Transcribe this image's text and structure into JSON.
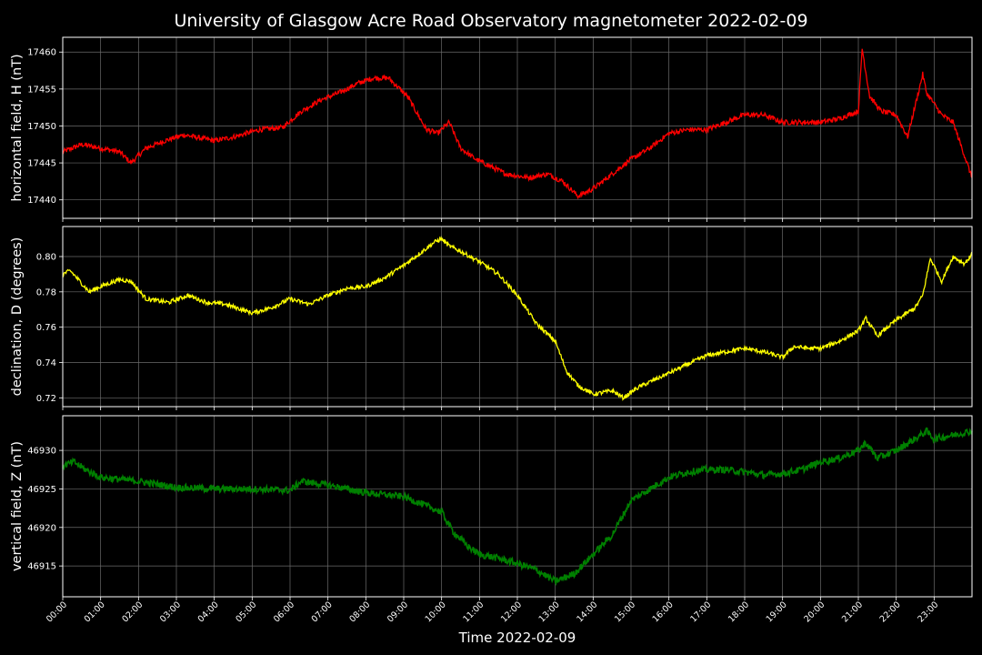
{
  "title": "University of Glasgow Acre Road Observatory magnetometer 2022-02-09",
  "xlabel": "Time 2022-02-09",
  "colors": {
    "background": "#000000",
    "grid": "#6b6b6b",
    "axis": "#ffffff"
  },
  "chart_data": [
    {
      "type": "line",
      "ylabel": "horizontal field, H (nT)",
      "color": "#ff0000",
      "ylim": [
        17437.5,
        17462.0
      ],
      "yticks": [
        17440,
        17445,
        17450,
        17455,
        17460
      ],
      "grid": true,
      "x_unit": "hours",
      "x": [
        0,
        0.5,
        1,
        1.5,
        1.8,
        2.2,
        2.7,
        3.2,
        4,
        4.5,
        5.2,
        5.8,
        6.3,
        6.8,
        7.3,
        7.8,
        8.2,
        8.6,
        9.1,
        9.6,
        9.9,
        10.2,
        10.5,
        10.9,
        11.3,
        11.7,
        12.3,
        12.8,
        13.2,
        13.6,
        14,
        14.5,
        15,
        15.5,
        16,
        16.5,
        17,
        17.5,
        18,
        18.5,
        19,
        19.5,
        20,
        20.5,
        21,
        21.1,
        21.3,
        21.6,
        22,
        22.3,
        22.7,
        22.8,
        23.2,
        23.5,
        23.8,
        24
      ],
      "y": [
        17446.5,
        17447.5,
        17447,
        17446.5,
        17445,
        17447,
        17448,
        17448.8,
        17448,
        17448.5,
        17449.5,
        17449.8,
        17452,
        17453.5,
        17454.5,
        17455.8,
        17456.5,
        17456.5,
        17454,
        17449.5,
        17449,
        17450.5,
        17447,
        17445.5,
        17444.5,
        17443.5,
        17443,
        17443.5,
        17442.5,
        17440.5,
        17441.5,
        17443.5,
        17445.5,
        17447,
        17449,
        17449.5,
        17449.5,
        17450.5,
        17451.5,
        17451.5,
        17450.5,
        17450.5,
        17450.5,
        17451,
        17452,
        17460.5,
        17454,
        17452,
        17451.5,
        17448.5,
        17457,
        17454.5,
        17451.5,
        17450.5,
        17446,
        17443
      ]
    },
    {
      "type": "line",
      "ylabel": "declination, D (degrees)",
      "color": "#ffff00",
      "ylim": [
        0.715,
        0.817
      ],
      "yticks": [
        0.72,
        0.74,
        0.76,
        0.78,
        0.8
      ],
      "grid": true,
      "x_unit": "hours",
      "x": [
        0,
        0.2,
        0.7,
        1,
        1.5,
        1.8,
        2.2,
        2.8,
        3.3,
        3.8,
        4.3,
        5,
        5.5,
        6,
        6.5,
        7,
        7.5,
        8,
        8.5,
        9,
        9.5,
        9.8,
        10,
        10.2,
        10.5,
        11,
        11.5,
        12,
        12.5,
        13,
        13.3,
        13.6,
        14,
        14.5,
        14.8,
        15.2,
        15.5,
        16,
        16.5,
        17,
        17.5,
        18,
        18.5,
        19,
        19.3,
        19.7,
        20,
        20.5,
        21,
        21.2,
        21.5,
        22,
        22.5,
        22.7,
        22.9,
        23.2,
        23.5,
        23.8,
        24
      ],
      "y": [
        0.79,
        0.792,
        0.78,
        0.783,
        0.787,
        0.786,
        0.776,
        0.774,
        0.778,
        0.774,
        0.773,
        0.768,
        0.771,
        0.776,
        0.773,
        0.778,
        0.782,
        0.783,
        0.788,
        0.795,
        0.803,
        0.808,
        0.81,
        0.806,
        0.803,
        0.797,
        0.79,
        0.778,
        0.762,
        0.752,
        0.735,
        0.727,
        0.722,
        0.724,
        0.72,
        0.726,
        0.729,
        0.734,
        0.739,
        0.744,
        0.746,
        0.748,
        0.746,
        0.743,
        0.749,
        0.748,
        0.748,
        0.752,
        0.758,
        0.765,
        0.755,
        0.764,
        0.771,
        0.778,
        0.799,
        0.786,
        0.8,
        0.796,
        0.801
      ]
    },
    {
      "type": "line",
      "ylabel": "vertical field, Z (nT)",
      "color": "#008000",
      "ylim": [
        46911.0,
        46934.5
      ],
      "yticks": [
        46915,
        46920,
        46925,
        46930
      ],
      "grid": true,
      "x_unit": "hours",
      "x": [
        0,
        0.3,
        0.6,
        1,
        2,
        3,
        4,
        5,
        6,
        6.3,
        7,
        7.5,
        8,
        9,
        9.5,
        10,
        10.3,
        10.7,
        11,
        11.5,
        12,
        12.5,
        13,
        13.5,
        14,
        14.5,
        15,
        15.5,
        16,
        16.5,
        17,
        17.5,
        18,
        18.5,
        19,
        19.5,
        20,
        20.5,
        21,
        21.2,
        21.5,
        22,
        22.5,
        22.8,
        23,
        23.5,
        24
      ],
      "y": [
        46928,
        46928.5,
        46927.5,
        46926.5,
        46926,
        46925.2,
        46925,
        46925,
        46924.8,
        46926,
        46925.5,
        46925,
        46924.5,
        46924,
        46923,
        46922,
        46919.5,
        46917.5,
        46916.5,
        46916,
        46915.3,
        46914.5,
        46913,
        46914,
        46916.5,
        46919,
        46923.5,
        46925,
        46926.5,
        46927.2,
        46927.5,
        46927.5,
        46927.2,
        46926.8,
        46927,
        46927.5,
        46928.5,
        46929,
        46930,
        46931,
        46929,
        46930,
        46931.5,
        46932.5,
        46931.5,
        46932,
        46932.5
      ]
    }
  ],
  "xticks": [
    "00:00",
    "01:00",
    "02:00",
    "03:00",
    "04:00",
    "05:00",
    "06:00",
    "07:00",
    "08:00",
    "09:00",
    "10:00",
    "11:00",
    "12:00",
    "13:00",
    "14:00",
    "15:00",
    "16:00",
    "17:00",
    "18:00",
    "19:00",
    "20:00",
    "21:00",
    "22:00",
    "23:00"
  ],
  "xlim": [
    0,
    24
  ]
}
